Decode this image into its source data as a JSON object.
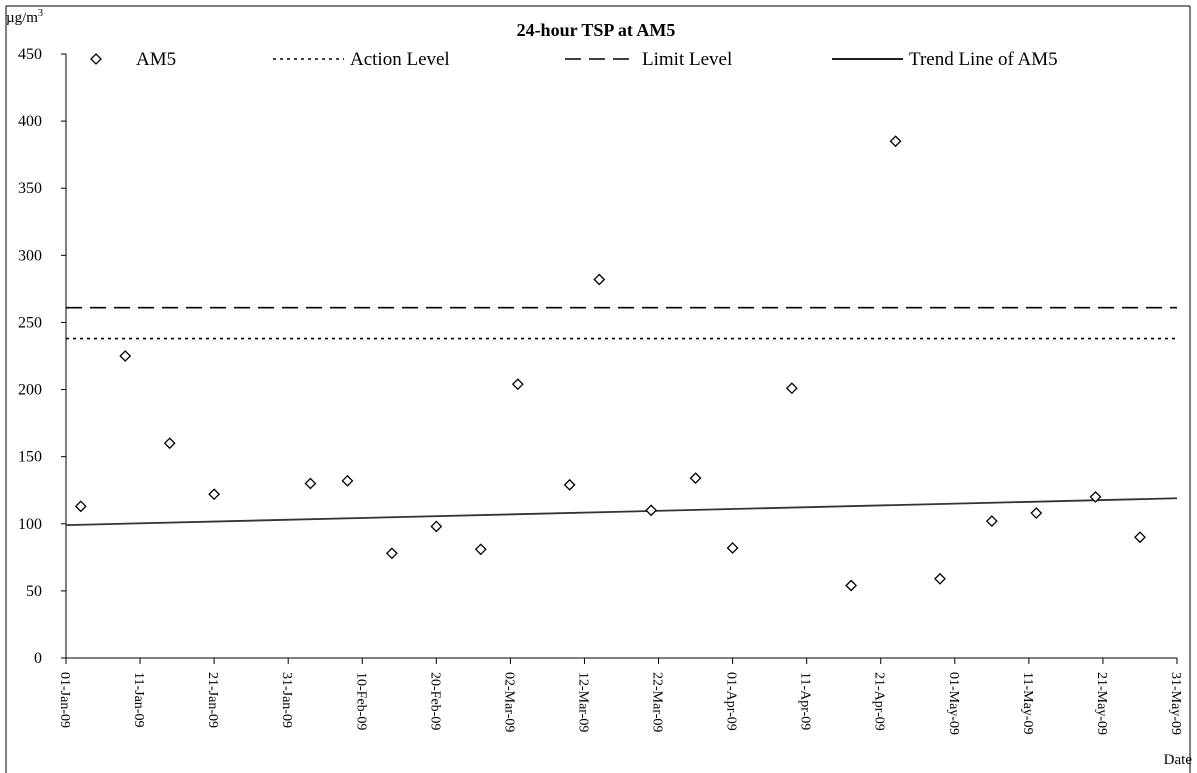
{
  "chart_data": {
    "type": "scatter",
    "title": "24-hour TSP at AM5",
    "ylabel": "µg/m³",
    "ylabel_base": "µg/m",
    "ylabel_sup": "3",
    "xlabel": "Date",
    "ylim": [
      0,
      450
    ],
    "xlim": [
      "2009-01-01",
      "2009-05-31"
    ],
    "y_ticks": [
      0,
      50,
      100,
      150,
      200,
      250,
      300,
      350,
      400,
      450
    ],
    "x_ticks": [
      {
        "date": "2009-01-01",
        "label": "01-Jan-09"
      },
      {
        "date": "2009-01-11",
        "label": "11-Jan-09"
      },
      {
        "date": "2009-01-21",
        "label": "21-Jan-09"
      },
      {
        "date": "2009-01-31",
        "label": "31-Jan-09"
      },
      {
        "date": "2009-02-10",
        "label": "10-Feb-09"
      },
      {
        "date": "2009-02-20",
        "label": "20-Feb-09"
      },
      {
        "date": "2009-03-02",
        "label": "02-Mar-09"
      },
      {
        "date": "2009-03-12",
        "label": "12-Mar-09"
      },
      {
        "date": "2009-03-22",
        "label": "22-Mar-09"
      },
      {
        "date": "2009-04-01",
        "label": "01-Apr-09"
      },
      {
        "date": "2009-04-11",
        "label": "11-Apr-09"
      },
      {
        "date": "2009-04-21",
        "label": "21-Apr-09"
      },
      {
        "date": "2009-05-01",
        "label": "01-May-09"
      },
      {
        "date": "2009-05-11",
        "label": "11-May-09"
      },
      {
        "date": "2009-05-21",
        "label": "21-May-09"
      },
      {
        "date": "2009-05-31",
        "label": "31-May-09"
      }
    ],
    "grid": false,
    "legend_position": "top",
    "series": [
      {
        "name": "AM5",
        "style": "diamond-marker",
        "points": [
          {
            "x": "2009-01-03",
            "y": 113
          },
          {
            "x": "2009-01-09",
            "y": 225
          },
          {
            "x": "2009-01-15",
            "y": 160
          },
          {
            "x": "2009-01-21",
            "y": 122
          },
          {
            "x": "2009-02-03",
            "y": 130
          },
          {
            "x": "2009-02-08",
            "y": 132
          },
          {
            "x": "2009-02-14",
            "y": 78
          },
          {
            "x": "2009-02-20",
            "y": 98
          },
          {
            "x": "2009-02-26",
            "y": 81
          },
          {
            "x": "2009-03-03",
            "y": 204
          },
          {
            "x": "2009-03-10",
            "y": 129
          },
          {
            "x": "2009-03-14",
            "y": 282
          },
          {
            "x": "2009-03-21",
            "y": 110
          },
          {
            "x": "2009-03-27",
            "y": 134
          },
          {
            "x": "2009-04-01",
            "y": 82
          },
          {
            "x": "2009-04-09",
            "y": 201
          },
          {
            "x": "2009-04-17",
            "y": 54
          },
          {
            "x": "2009-04-23",
            "y": 385
          },
          {
            "x": "2009-04-29",
            "y": 59
          },
          {
            "x": "2009-05-06",
            "y": 102
          },
          {
            "x": "2009-05-12",
            "y": 108
          },
          {
            "x": "2009-05-20",
            "y": 120
          },
          {
            "x": "2009-05-26",
            "y": 90
          }
        ]
      },
      {
        "name": "Action Level",
        "style": "dotted",
        "value": 238
      },
      {
        "name": "Limit Level",
        "style": "dashed",
        "value": 261
      },
      {
        "name": "Trend Line of AM5",
        "style": "solid",
        "points": [
          {
            "x": "2009-01-01",
            "y": 99
          },
          {
            "x": "2009-05-31",
            "y": 119
          }
        ]
      }
    ]
  }
}
